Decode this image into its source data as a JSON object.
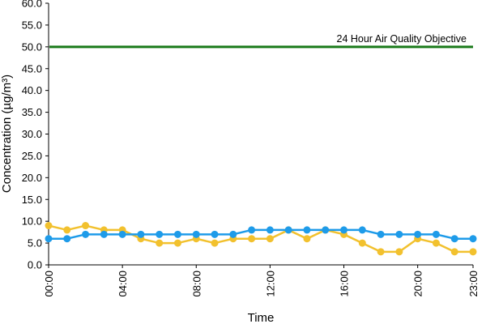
{
  "chart_data": {
    "type": "line",
    "xlabel": "Time",
    "ylabel": "Concentration (µg/m³)",
    "ylim": [
      0,
      60
    ],
    "y_ticks": [
      "0.0",
      "5.0",
      "10.0",
      "15.0",
      "20.0",
      "25.0",
      "30.0",
      "35.0",
      "40.0",
      "45.0",
      "50.0",
      "55.0",
      "60.0"
    ],
    "x_ticks": [
      "00:00",
      "04:00",
      "08:00",
      "12:00",
      "16:00",
      "20:00",
      "23:00"
    ],
    "x_tick_hours": [
      0,
      4,
      8,
      12,
      16,
      20,
      23
    ],
    "grid": false,
    "legend": "none",
    "reference_line": {
      "label": "24 Hour Air Quality Objective",
      "value": 50,
      "color": "#1a7a1a"
    },
    "x_hours": [
      0,
      1,
      2,
      3,
      4,
      5,
      6,
      7,
      8,
      9,
      10,
      11,
      12,
      13,
      14,
      15,
      16,
      17,
      18,
      19,
      20,
      21,
      22,
      23
    ],
    "series": [
      {
        "color": "#f2c12e",
        "values": [
          9,
          8,
          9,
          8,
          8,
          6,
          5,
          5,
          6,
          5,
          6,
          6,
          6,
          8,
          6,
          8,
          7,
          5,
          3,
          3,
          6,
          5,
          3,
          3
        ]
      },
      {
        "color": "#1e9be9",
        "values": [
          6,
          6,
          7,
          7,
          7,
          7,
          7,
          7,
          7,
          7,
          7,
          8,
          8,
          8,
          8,
          8,
          8,
          8,
          7,
          7,
          7,
          7,
          6,
          6
        ]
      }
    ]
  }
}
